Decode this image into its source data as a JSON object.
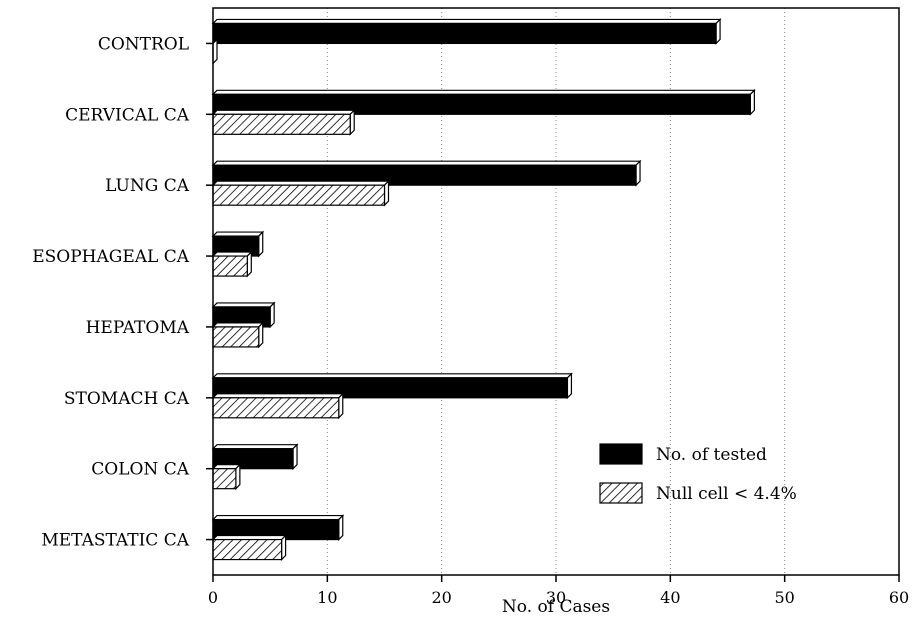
{
  "chart_data": {
    "type": "bar",
    "orientation": "horizontal",
    "categories": [
      "CONTROL",
      "CERVICAL CA",
      "LUNG CA",
      "ESOPHAGEAL CA",
      "HEPATOMA",
      "STOMACH CA",
      "COLON CA",
      "METASTATIC CA"
    ],
    "series": [
      {
        "name": "No. of tested",
        "values": [
          44,
          47,
          37,
          4,
          5,
          31,
          7,
          11
        ],
        "color": "#000000",
        "pattern": "solid"
      },
      {
        "name": "Null cell < 4.4%",
        "values": [
          0,
          12,
          15,
          3,
          4,
          11,
          2,
          6
        ],
        "color": "#000000",
        "pattern": "diagonal-hatch"
      }
    ],
    "xlabel": "No. of Cases",
    "ylabel": "",
    "title": "",
    "xlim": [
      0,
      60
    ],
    "xticks": [
      0,
      10,
      20,
      30,
      40,
      50,
      60
    ],
    "grid": "vertical dotted",
    "legend_position": "lower-right"
  }
}
